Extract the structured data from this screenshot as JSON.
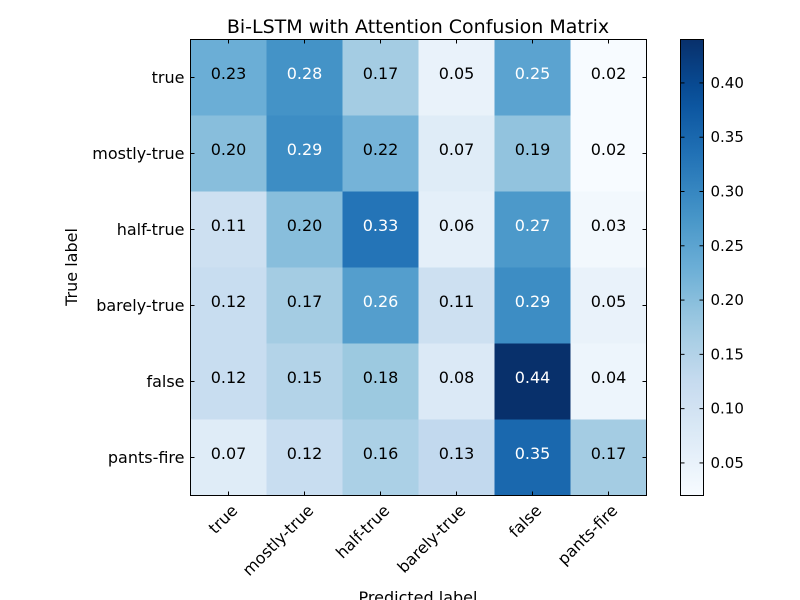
{
  "chart_data": {
    "type": "heatmap",
    "title": "Bi-LSTM with Attention Confusion Matrix",
    "xlabel": "Predicted label",
    "ylabel": "True label",
    "x_categories": [
      "true",
      "mostly-true",
      "half-true",
      "barely-true",
      "false",
      "pants-fire"
    ],
    "y_categories": [
      "true",
      "mostly-true",
      "half-true",
      "barely-true",
      "false",
      "pants-fire"
    ],
    "values": [
      [
        0.23,
        0.28,
        0.17,
        0.05,
        0.25,
        0.02
      ],
      [
        0.2,
        0.29,
        0.22,
        0.07,
        0.19,
        0.02
      ],
      [
        0.11,
        0.2,
        0.33,
        0.06,
        0.27,
        0.03
      ],
      [
        0.12,
        0.17,
        0.26,
        0.11,
        0.29,
        0.05
      ],
      [
        0.12,
        0.15,
        0.18,
        0.08,
        0.44,
        0.04
      ],
      [
        0.07,
        0.12,
        0.16,
        0.13,
        0.35,
        0.17
      ]
    ],
    "colormap": "Blues",
    "color_range": [
      0.02,
      0.44
    ],
    "colorbar_ticks": [
      "0.05",
      "0.10",
      "0.15",
      "0.20",
      "0.25",
      "0.30",
      "0.35",
      "0.40"
    ],
    "text_color_light": "#ffffff",
    "text_color_dark": "#000000"
  }
}
